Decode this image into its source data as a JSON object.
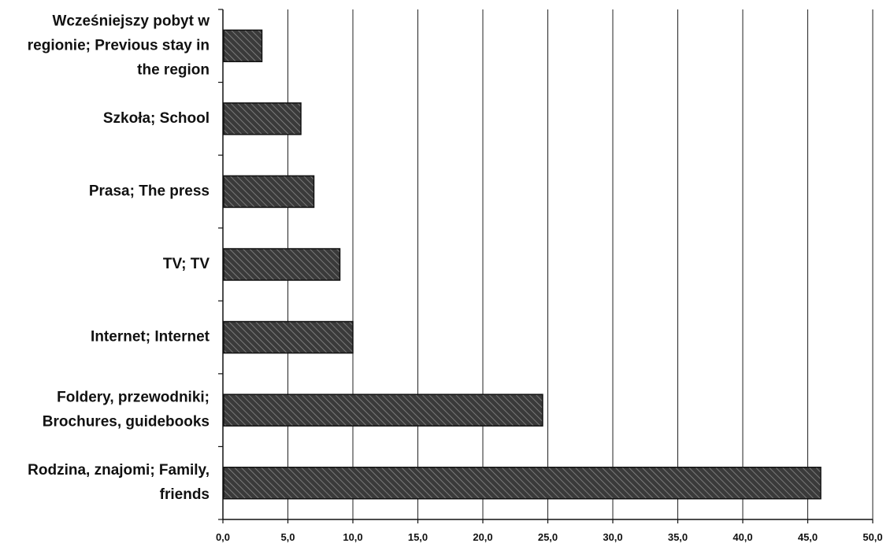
{
  "chart_data": {
    "type": "bar",
    "orientation": "horizontal",
    "categories": [
      "Wcześniejszy pobyt w regionie; Previous stay in the region",
      "Szkoła; School",
      "Prasa; The press",
      "TV; TV",
      "Internet; Internet",
      "Foldery, przewodniki; Brochures, guidebooks",
      "Rodzina, znajomi; Family, friends"
    ],
    "category_lines": [
      [
        "Wcześniejszy pobyt w",
        "regionie; Previous stay in",
        "the region"
      ],
      [
        "Szkoła; School"
      ],
      [
        "Prasa; The press"
      ],
      [
        "TV; TV"
      ],
      [
        "Internet; Internet"
      ],
      [
        "Foldery, przewodniki;",
        "Brochures, guidebooks"
      ],
      [
        "Rodzina, znajomi; Family,",
        "friends"
      ]
    ],
    "values": [
      3.0,
      6.0,
      7.0,
      9.0,
      10.0,
      24.6,
      46.0
    ],
    "xlim": [
      0,
      50
    ],
    "xticks": [
      0,
      5,
      10,
      15,
      20,
      25,
      30,
      35,
      40,
      45,
      50
    ],
    "xtick_labels": [
      "0,0",
      "5,0",
      "10,0",
      "15,0",
      "20,0",
      "25,0",
      "30,0",
      "35,0",
      "40,0",
      "45,0",
      "50,0"
    ],
    "title": "",
    "xlabel": "",
    "ylabel": "",
    "grid": "vertical",
    "legend": "none",
    "bar_color": "#3a3a3a",
    "hatch_color": "#8a8a8a",
    "grid_color": "#222222"
  }
}
